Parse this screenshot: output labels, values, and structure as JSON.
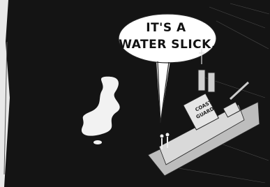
{
  "speech_bubble": {
    "lines": [
      "IT'S A",
      "WATER SLICK."
    ]
  },
  "ship_label": {
    "lines": [
      "COAST",
      "GUARD"
    ]
  }
}
